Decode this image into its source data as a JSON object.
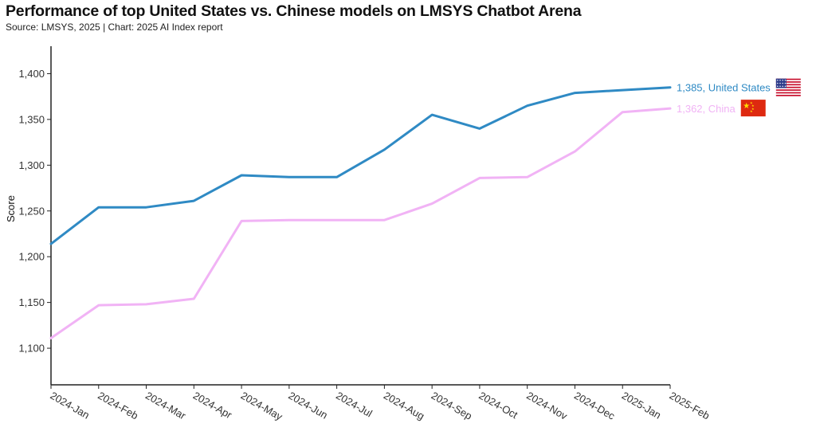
{
  "title": "Performance of top United States vs. Chinese models on LMSYS Chatbot Arena",
  "subtitle": "Source: LMSYS, 2025 | Chart: 2025 AI Index report",
  "chart_data": {
    "type": "line",
    "title": "Performance of top United States vs. Chinese models on LMSYS Chatbot Arena",
    "xlabel": "",
    "ylabel": "Score",
    "ylim": [
      1060,
      1430
    ],
    "yticks": [
      "1,100",
      "1,150",
      "1,200",
      "1,250",
      "1,300",
      "1,350",
      "1,400"
    ],
    "ytick_values": [
      1100,
      1150,
      1200,
      1250,
      1300,
      1350,
      1400
    ],
    "categories": [
      "2024-Jan",
      "2024-Feb",
      "2024-Mar",
      "2024-Apr",
      "2024-May",
      "2024-Jun",
      "2024-Jul",
      "2024-Aug",
      "2024-Sep",
      "2024-Oct",
      "2024-Nov",
      "2024-Dec",
      "2025-Jan",
      "2025-Feb"
    ],
    "grid": false,
    "series": [
      {
        "name": "United States",
        "color": "#2f8ac4",
        "end_label": "1,385, United States",
        "flag": "us-flag",
        "values": [
          1214,
          1254,
          1254,
          1261,
          1289,
          1287,
          1287,
          1317,
          1355,
          1340,
          1365,
          1379,
          1382,
          1385
        ]
      },
      {
        "name": "China",
        "color": "#f1b3f5",
        "end_label": "1,362, China",
        "flag": "china-flag",
        "values": [
          1111,
          1147,
          1148,
          1154,
          1239,
          1240,
          1240,
          1240,
          1258,
          1286,
          1287,
          1315,
          1358,
          1362
        ]
      }
    ]
  }
}
